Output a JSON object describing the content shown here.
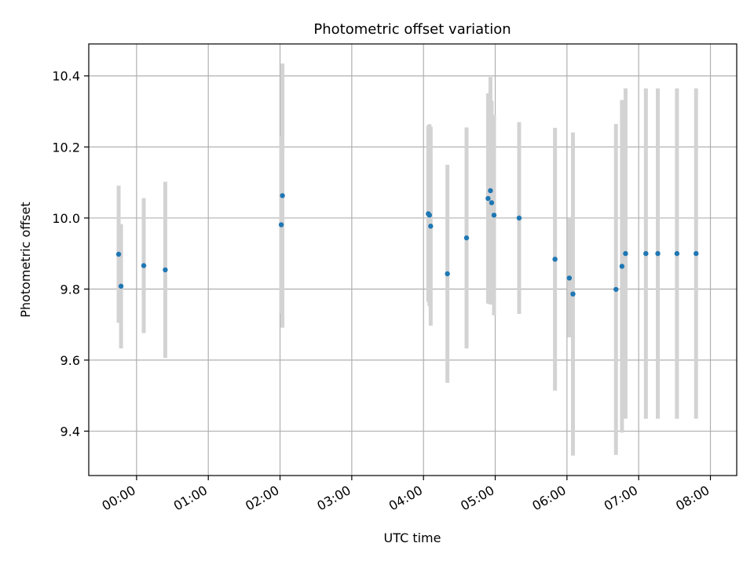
{
  "chart_data": {
    "type": "scatter",
    "title": "Photometric offset variation",
    "xlabel": "UTC time",
    "ylabel": "Photometric offset",
    "x_ticks": [
      "00:00",
      "01:00",
      "02:00",
      "03:00",
      "04:00",
      "05:00",
      "06:00",
      "07:00",
      "08:00"
    ],
    "y_ticks": [
      9.4,
      9.6,
      9.8,
      10.0,
      10.2,
      10.4
    ],
    "xlim": [
      "23:20",
      "08:22"
    ],
    "ylim": [
      9.275,
      10.49
    ],
    "grid": true,
    "legend": "none",
    "colors": {
      "marker": "#1f77b4",
      "errorbar": "#d3d3d3",
      "grid": "#b0b0b0"
    },
    "points": [
      {
        "time": "23:45",
        "y": 9.898,
        "err": 0.193
      },
      {
        "time": "23:47",
        "y": 9.808,
        "err": 0.175
      },
      {
        "time": "00:06",
        "y": 9.866,
        "err": 0.19
      },
      {
        "time": "00:24",
        "y": 9.854,
        "err": 0.248
      },
      {
        "time": "02:01",
        "y": 9.981,
        "err": 0.25
      },
      {
        "time": "02:02",
        "y": 10.063,
        "err": 0.372
      },
      {
        "time": "04:04",
        "y": 10.012,
        "err": 0.248
      },
      {
        "time": "04:05",
        "y": 10.008,
        "err": 0.256
      },
      {
        "time": "04:06",
        "y": 9.977,
        "err": 0.28
      },
      {
        "time": "04:20",
        "y": 9.843,
        "err": 0.307
      },
      {
        "time": "04:36",
        "y": 9.944,
        "err": 0.311
      },
      {
        "time": "04:54",
        "y": 10.055,
        "err": 0.296
      },
      {
        "time": "04:56",
        "y": 10.077,
        "err": 0.32
      },
      {
        "time": "04:57",
        "y": 10.043,
        "err": 0.287
      },
      {
        "time": "04:59",
        "y": 10.008,
        "err": 0.282
      },
      {
        "time": "05:20",
        "y": 10.0,
        "err": 0.27
      },
      {
        "time": "05:50",
        "y": 9.884,
        "err": 0.37
      },
      {
        "time": "06:02",
        "y": 9.831,
        "err": 0.167
      },
      {
        "time": "06:05",
        "y": 9.786,
        "err": 0.455
      },
      {
        "time": "06:41",
        "y": 9.799,
        "err": 0.466
      },
      {
        "time": "06:46",
        "y": 9.864,
        "err": 0.468
      },
      {
        "time": "06:49",
        "y": 9.9,
        "err": 0.465
      },
      {
        "time": "07:06",
        "y": 9.9,
        "err": 0.465
      },
      {
        "time": "07:16",
        "y": 9.9,
        "err": 0.465
      },
      {
        "time": "07:32",
        "y": 9.9,
        "err": 0.465
      },
      {
        "time": "07:48",
        "y": 9.9,
        "err": 0.465
      }
    ]
  }
}
